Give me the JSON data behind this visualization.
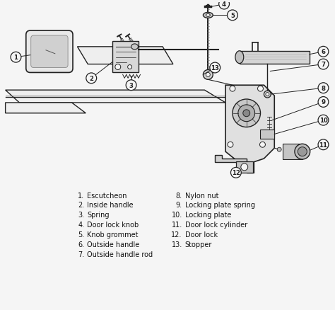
{
  "background_color": "#f5f5f5",
  "line_color": "#222222",
  "text_color": "#111111",
  "font_size": 7.0,
  "figsize": [
    4.74,
    4.39
  ],
  "dpi": 100,
  "legend_left": [
    {
      "num": "1.",
      "text": "Escutcheon"
    },
    {
      "num": "2.",
      "text": "Inside handle"
    },
    {
      "num": "3.",
      "text": "Spring"
    },
    {
      "num": "4.",
      "text": "Door lock knob"
    },
    {
      "num": "5.",
      "text": "Knob grommet"
    },
    {
      "num": "6.",
      "text": "Outside handle"
    },
    {
      "num": "7.",
      "text": "Outside handle rod"
    }
  ],
  "legend_right": [
    {
      "num": "8.",
      "text": "Nylon nut"
    },
    {
      "num": "9.",
      "text": "Locking plate spring"
    },
    {
      "num": "10.",
      "text": "Locking plate"
    },
    {
      "num": "11.",
      "text": "Door lock cylinder"
    },
    {
      "num": "12.",
      "text": "Door lock"
    },
    {
      "num": "13.",
      "text": "Stopper"
    }
  ]
}
